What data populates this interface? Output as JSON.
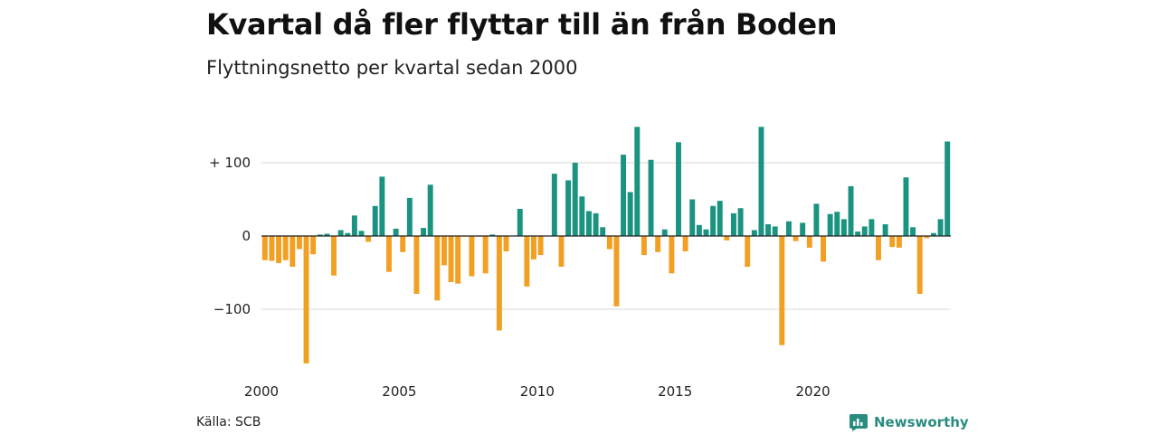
{
  "header": {
    "title": "Kvartal då fler flyttar till än från Boden",
    "subtitle": "Flyttningsnetto per kvartal sedan 2000"
  },
  "footer": {
    "source": "Källa: SCB",
    "brand": "Newsworthy",
    "brand_icon": "chart-bubble-icon"
  },
  "colors": {
    "positive": "#1a9480",
    "negative": "#f2a024",
    "grid": "#d9d9d9",
    "zero_line": "#222222"
  },
  "chart_data": {
    "type": "bar",
    "title": "Kvartal då fler flyttar till än från Boden",
    "subtitle": "Flyttningsnetto per kvartal sedan 2000",
    "xlabel": "",
    "ylabel": "",
    "ylim": [
      -180,
      150
    ],
    "grid": true,
    "y_ticks": [
      {
        "value": 100,
        "label": "+ 100"
      },
      {
        "value": 0,
        "label": "0"
      },
      {
        "value": -100,
        "label": "−100"
      }
    ],
    "x_ticks": [
      {
        "year": 2000,
        "label": "2000"
      },
      {
        "year": 2005,
        "label": "2005"
      },
      {
        "year": 2010,
        "label": "2010"
      },
      {
        "year": 2015,
        "label": "2015"
      },
      {
        "year": 2020,
        "label": "2020"
      }
    ],
    "start": "2000 Q1",
    "values": [
      -33,
      -34,
      -37,
      -33,
      -42,
      -18,
      -174,
      -25,
      2,
      3,
      -54,
      8,
      4,
      28,
      7,
      -8,
      41,
      81,
      -49,
      10,
      -22,
      52,
      -79,
      11,
      70,
      -88,
      -40,
      -63,
      -65,
      -1,
      -55,
      -1,
      -51,
      2,
      -129,
      -21,
      0,
      37,
      -69,
      -32,
      -26,
      0,
      85,
      -42,
      76,
      100,
      54,
      34,
      31,
      12,
      -18,
      -96,
      111,
      60,
      149,
      -26,
      104,
      -22,
      9,
      -51,
      128,
      -21,
      50,
      15,
      9,
      41,
      48,
      -6,
      31,
      38,
      -42,
      8,
      149,
      16,
      13,
      -149,
      20,
      -7,
      18,
      -16,
      44,
      -35,
      30,
      33,
      23,
      68,
      6,
      13,
      23,
      -33,
      16,
      -15,
      -16,
      80,
      12,
      -79,
      -3,
      4,
      23,
      129
    ]
  }
}
